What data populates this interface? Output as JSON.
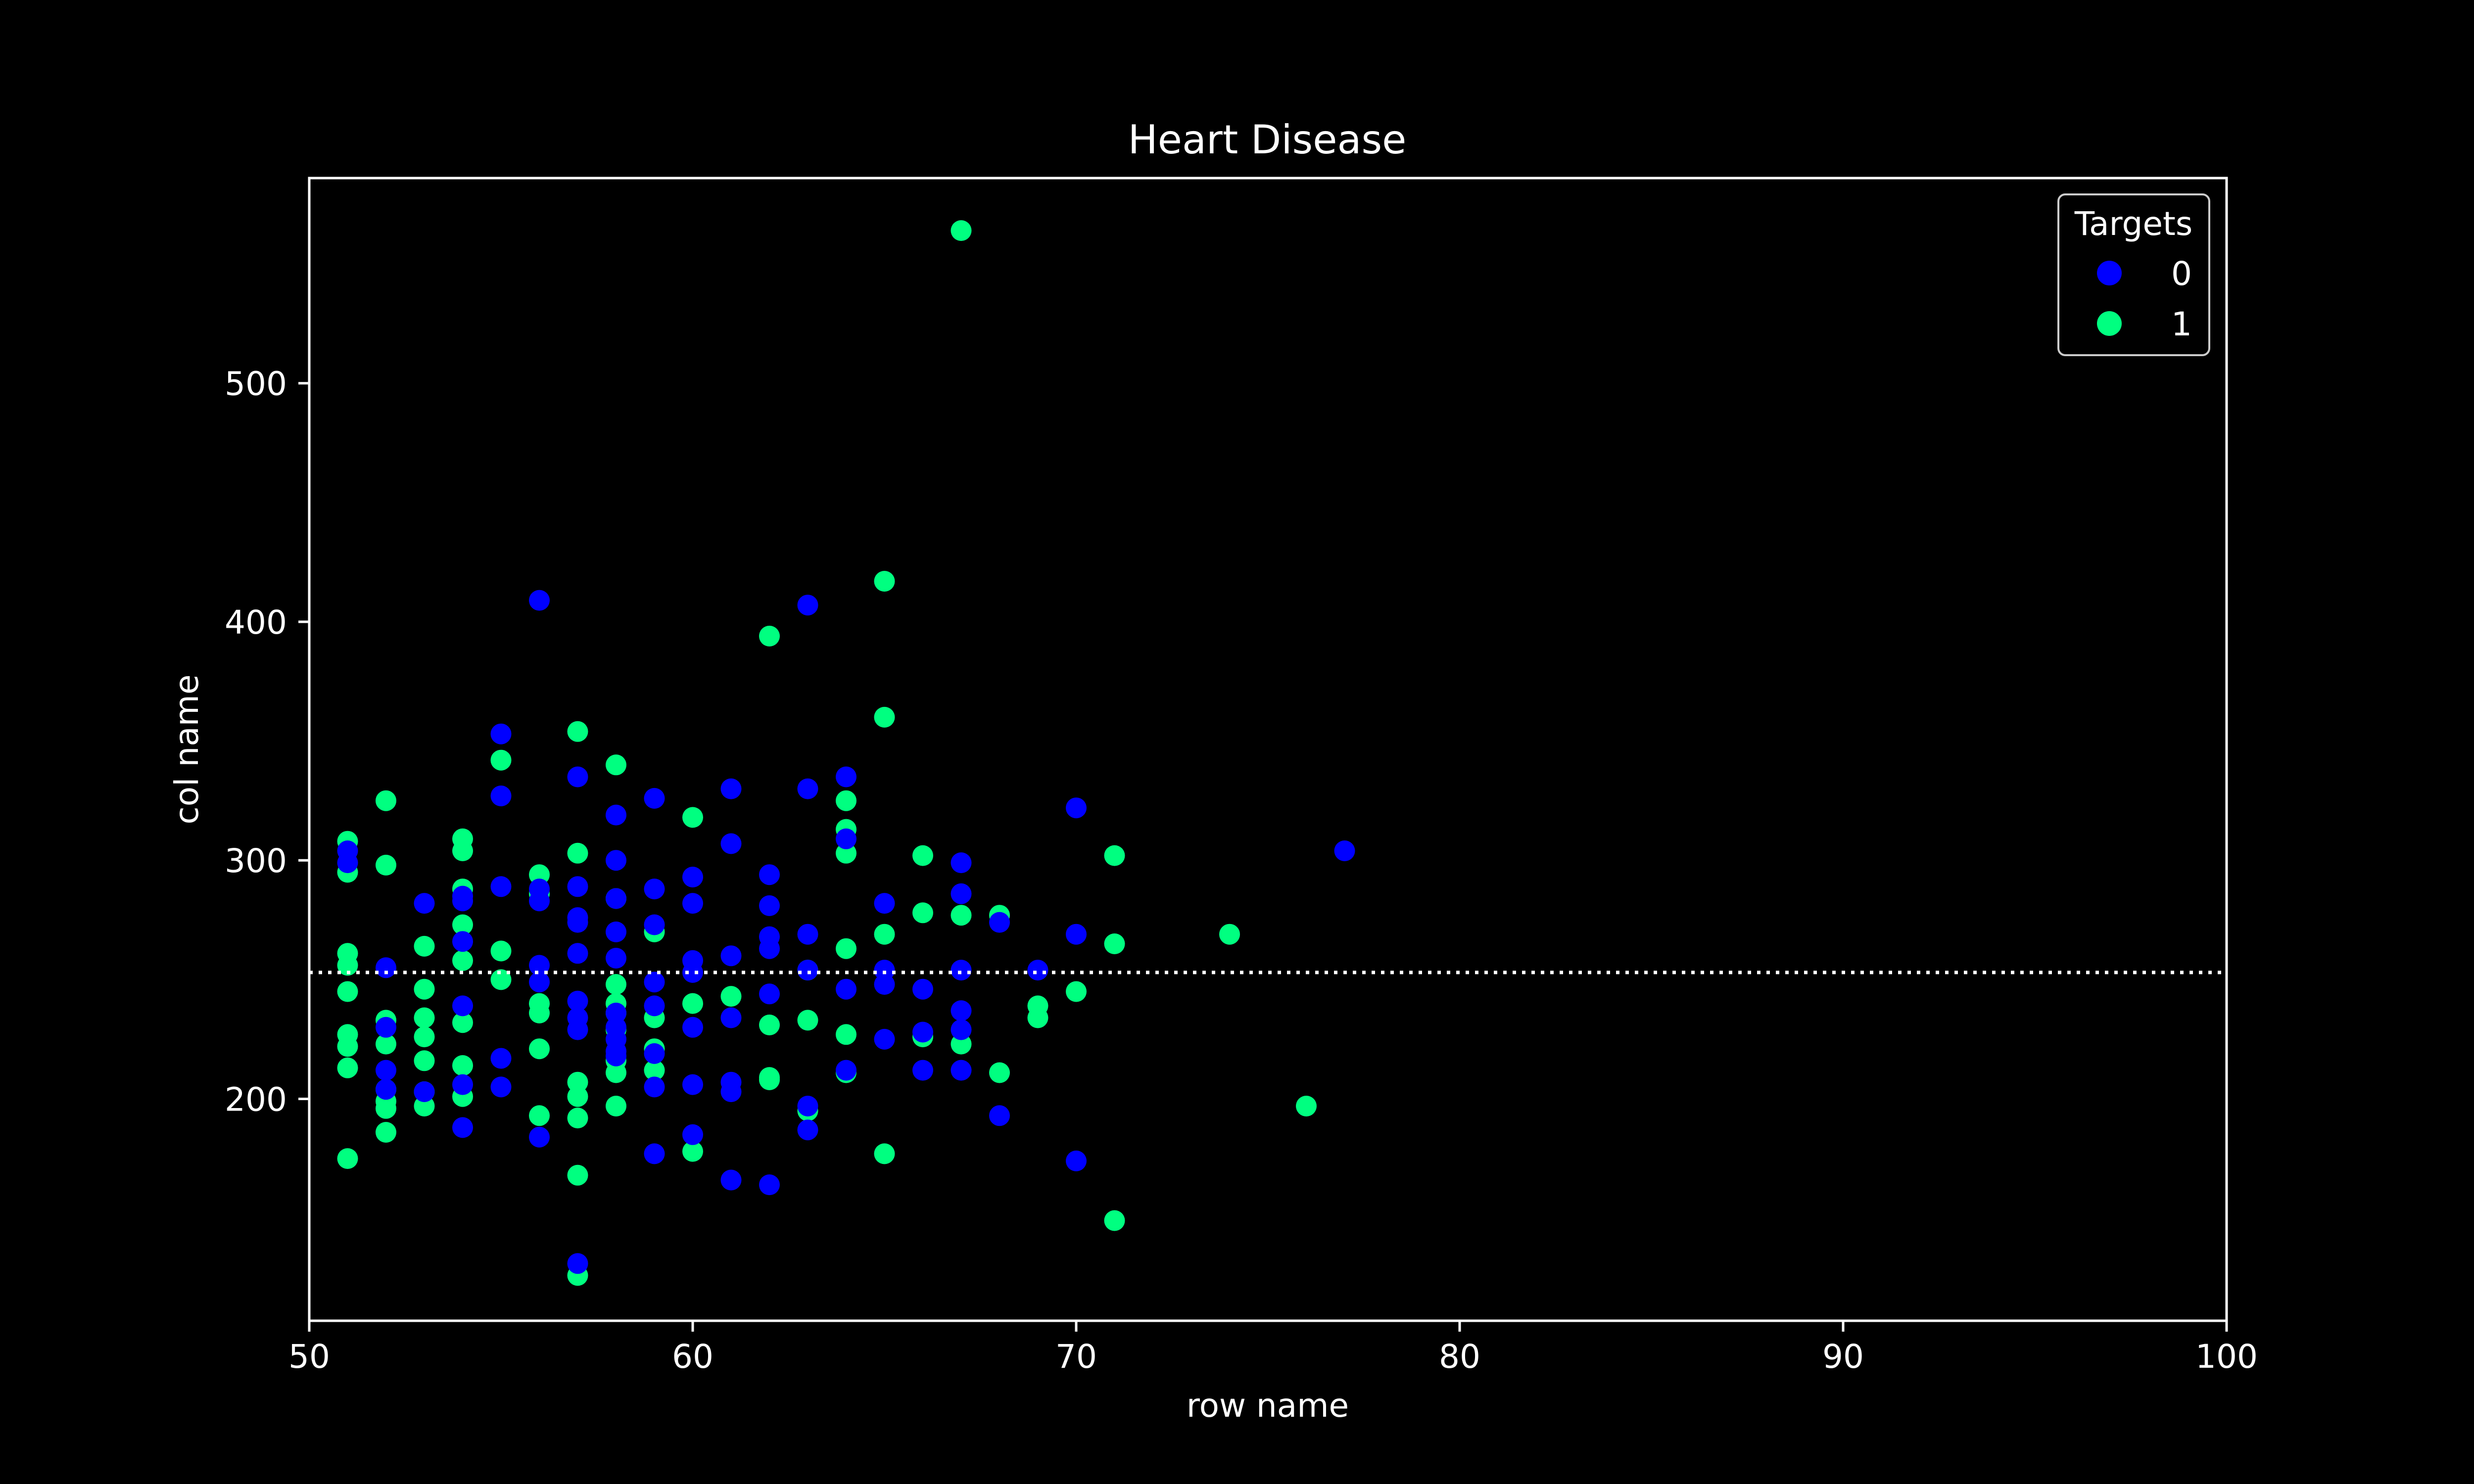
{
  "chart_data": {
    "type": "scatter",
    "title": "Heart Disease",
    "xlabel": "row name",
    "ylabel": "col name",
    "xlim": [
      50,
      100
    ],
    "ylim": [
      107,
      586
    ],
    "xticks": [
      50,
      60,
      70,
      80,
      90,
      100
    ],
    "yticks": [
      200,
      300,
      400,
      500
    ],
    "grid": false,
    "background": "#000000",
    "foreground": "#ffffff",
    "reference_line": {
      "y": 253,
      "style": "dotted",
      "color": "#ffffff"
    },
    "legend": {
      "title": "Targets",
      "placement": "top-right",
      "entries": [
        "0",
        "1"
      ]
    },
    "series": [
      {
        "name": "1",
        "color": "#00ff80",
        "points": [
          [
            51,
            308
          ],
          [
            51,
            295
          ],
          [
            51,
            261
          ],
          [
            51,
            256
          ],
          [
            51,
            245
          ],
          [
            51,
            227
          ],
          [
            51,
            222
          ],
          [
            51,
            213
          ],
          [
            51,
            175
          ],
          [
            52,
            325
          ],
          [
            52,
            298
          ],
          [
            52,
            233
          ],
          [
            52,
            223
          ],
          [
            52,
            204
          ],
          [
            52,
            199
          ],
          [
            52,
            196
          ],
          [
            52,
            186
          ],
          [
            53,
            264
          ],
          [
            53,
            246
          ],
          [
            53,
            234
          ],
          [
            53,
            226
          ],
          [
            53,
            216
          ],
          [
            53,
            203
          ],
          [
            53,
            197
          ],
          [
            54,
            309
          ],
          [
            54,
            304
          ],
          [
            54,
            288
          ],
          [
            54,
            273
          ],
          [
            54,
            258
          ],
          [
            54,
            232
          ],
          [
            54,
            214
          ],
          [
            54,
            201
          ],
          [
            55,
            342
          ],
          [
            55,
            262
          ],
          [
            55,
            250
          ],
          [
            56,
            294
          ],
          [
            56,
            286
          ],
          [
            56,
            240
          ],
          [
            56,
            236
          ],
          [
            56,
            221
          ],
          [
            56,
            193
          ],
          [
            57,
            354
          ],
          [
            57,
            303
          ],
          [
            57,
            207
          ],
          [
            57,
            201
          ],
          [
            57,
            192
          ],
          [
            57,
            168
          ],
          [
            57,
            126
          ],
          [
            58,
            340
          ],
          [
            58,
            284
          ],
          [
            58,
            248
          ],
          [
            58,
            240
          ],
          [
            58,
            236
          ],
          [
            58,
            229
          ],
          [
            58,
            216
          ],
          [
            58,
            211
          ],
          [
            58,
            197
          ],
          [
            59,
            270
          ],
          [
            59,
            234
          ],
          [
            59,
            221
          ],
          [
            59,
            212
          ],
          [
            60,
            318
          ],
          [
            60,
            240
          ],
          [
            60,
            178
          ],
          [
            61,
            243
          ],
          [
            62,
            394
          ],
          [
            62,
            231
          ],
          [
            62,
            209
          ],
          [
            62,
            208
          ],
          [
            63,
            254
          ],
          [
            63,
            233
          ],
          [
            63,
            195
          ],
          [
            64,
            325
          ],
          [
            64,
            313
          ],
          [
            64,
            303
          ],
          [
            64,
            263
          ],
          [
            64,
            227
          ],
          [
            64,
            211
          ],
          [
            65,
            417
          ],
          [
            65,
            360
          ],
          [
            65,
            269
          ],
          [
            65,
            177
          ],
          [
            66,
            302
          ],
          [
            66,
            278
          ],
          [
            66,
            226
          ],
          [
            67,
            564
          ],
          [
            67,
            277
          ],
          [
            67,
            223
          ],
          [
            68,
            277
          ],
          [
            68,
            211
          ],
          [
            69,
            239
          ],
          [
            69,
            234
          ],
          [
            70,
            245
          ],
          [
            71,
            302
          ],
          [
            71,
            265
          ],
          [
            71,
            149
          ],
          [
            74,
            269
          ],
          [
            76,
            197
          ]
        ]
      },
      {
        "name": "0",
        "color": "#0000ff",
        "points": [
          [
            51,
            304
          ],
          [
            51,
            299
          ],
          [
            52,
            255
          ],
          [
            52,
            230
          ],
          [
            52,
            212
          ],
          [
            52,
            204
          ],
          [
            53,
            282
          ],
          [
            53,
            203
          ],
          [
            54,
            285
          ],
          [
            54,
            283
          ],
          [
            54,
            266
          ],
          [
            54,
            239
          ],
          [
            54,
            206
          ],
          [
            54,
            188
          ],
          [
            55,
            353
          ],
          [
            55,
            327
          ],
          [
            55,
            289
          ],
          [
            55,
            217
          ],
          [
            55,
            205
          ],
          [
            56,
            409
          ],
          [
            56,
            288
          ],
          [
            56,
            283
          ],
          [
            56,
            256
          ],
          [
            56,
            249
          ],
          [
            56,
            184
          ],
          [
            57,
            335
          ],
          [
            57,
            289
          ],
          [
            57,
            276
          ],
          [
            57,
            274
          ],
          [
            57,
            261
          ],
          [
            57,
            241
          ],
          [
            57,
            234
          ],
          [
            57,
            229
          ],
          [
            57,
            131
          ],
          [
            58,
            319
          ],
          [
            58,
            300
          ],
          [
            58,
            284
          ],
          [
            58,
            270
          ],
          [
            58,
            259
          ],
          [
            58,
            236
          ],
          [
            58,
            230
          ],
          [
            58,
            225
          ],
          [
            58,
            220
          ],
          [
            58,
            218
          ],
          [
            59,
            326
          ],
          [
            59,
            288
          ],
          [
            59,
            273
          ],
          [
            59,
            249
          ],
          [
            59,
            239
          ],
          [
            59,
            219
          ],
          [
            59,
            205
          ],
          [
            59,
            177
          ],
          [
            60,
            293
          ],
          [
            60,
            282
          ],
          [
            60,
            258
          ],
          [
            60,
            253
          ],
          [
            60,
            230
          ],
          [
            60,
            206
          ],
          [
            60,
            185
          ],
          [
            61,
            330
          ],
          [
            61,
            307
          ],
          [
            61,
            260
          ],
          [
            61,
            234
          ],
          [
            61,
            207
          ],
          [
            61,
            203
          ],
          [
            61,
            166
          ],
          [
            62,
            294
          ],
          [
            62,
            281
          ],
          [
            62,
            268
          ],
          [
            62,
            263
          ],
          [
            62,
            244
          ],
          [
            62,
            164
          ],
          [
            63,
            407
          ],
          [
            63,
            330
          ],
          [
            63,
            269
          ],
          [
            63,
            254
          ],
          [
            63,
            197
          ],
          [
            63,
            187
          ],
          [
            64,
            335
          ],
          [
            64,
            309
          ],
          [
            64,
            246
          ],
          [
            64,
            212
          ],
          [
            65,
            282
          ],
          [
            65,
            254
          ],
          [
            65,
            248
          ],
          [
            65,
            225
          ],
          [
            66,
            246
          ],
          [
            66,
            228
          ],
          [
            66,
            212
          ],
          [
            67,
            299
          ],
          [
            67,
            286
          ],
          [
            67,
            254
          ],
          [
            67,
            237
          ],
          [
            67,
            229
          ],
          [
            67,
            212
          ],
          [
            68,
            274
          ],
          [
            68,
            193
          ],
          [
            69,
            254
          ],
          [
            70,
            322
          ],
          [
            70,
            269
          ],
          [
            70,
            174
          ],
          [
            77,
            304
          ]
        ]
      }
    ]
  }
}
